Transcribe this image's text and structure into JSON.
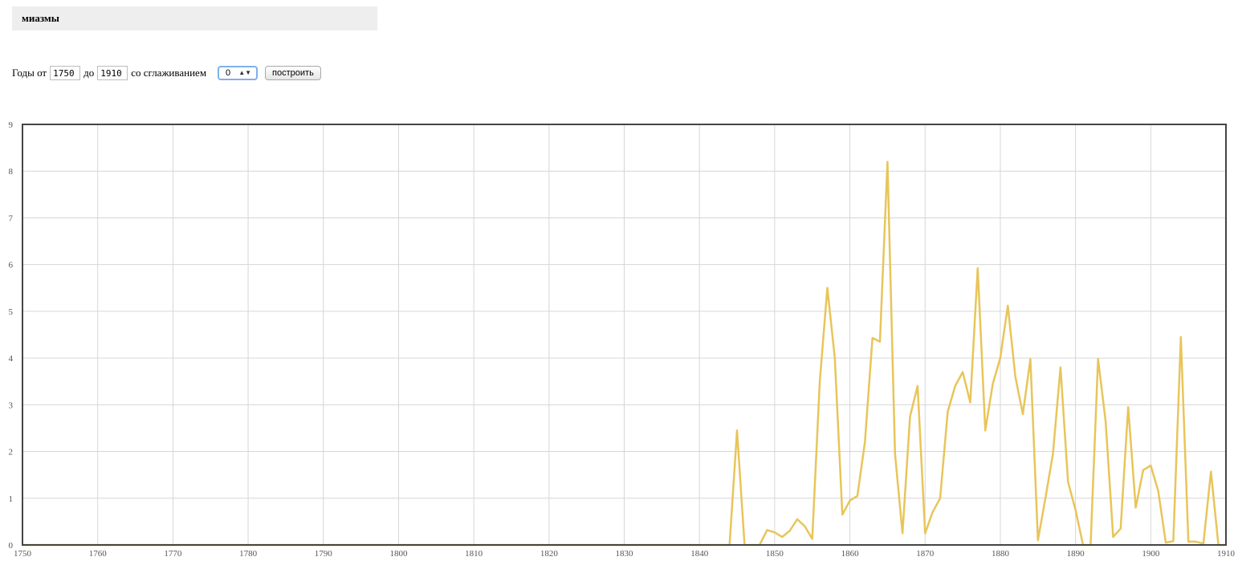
{
  "query": "миазмы",
  "controls": {
    "years_from_label": "Годы от",
    "year_from": "1750",
    "years_to_label": "до",
    "year_to": "1910",
    "smoothing_label": "со сглаживанием",
    "smoothing_value": "0",
    "build_button_label": "построить"
  },
  "colors": {
    "line": "#e8c55a",
    "grid": "#d6d6d6",
    "frame": "#444444"
  },
  "chart_data": {
    "type": "line",
    "xlim": [
      1750,
      1910
    ],
    "ylim": [
      0,
      9
    ],
    "grid": true,
    "x_ticks": [
      1750,
      1760,
      1770,
      1780,
      1790,
      1800,
      1810,
      1820,
      1830,
      1840,
      1850,
      1860,
      1870,
      1880,
      1890,
      1900,
      1910
    ],
    "y_ticks": [
      0,
      1,
      2,
      3,
      4,
      5,
      6,
      7,
      8,
      9
    ],
    "x_tick_labels": [
      "1750",
      "1760",
      "1770",
      "1780",
      "1790",
      "1800",
      "1810",
      "1820",
      "1830",
      "1840",
      "1850",
      "1860",
      "1870",
      "1880",
      "1890",
      "1900",
      "1910"
    ],
    "y_tick_labels": [
      "0",
      "1",
      "2",
      "3",
      "4",
      "5",
      "6",
      "7",
      "8",
      "9"
    ],
    "series": [
      {
        "x": [
          1750,
          1844,
          1845,
          1846,
          1847,
          1848,
          1849,
          1850,
          1851,
          1852,
          1853,
          1854,
          1855,
          1856,
          1857,
          1858,
          1859,
          1860,
          1861,
          1862,
          1863,
          1864,
          1865,
          1866,
          1867,
          1868,
          1869,
          1870,
          1871,
          1872,
          1873,
          1874,
          1875,
          1876,
          1877,
          1878,
          1879,
          1880,
          1881,
          1882,
          1883,
          1884,
          1885,
          1886,
          1887,
          1888,
          1889,
          1890,
          1891,
          1892,
          1893,
          1894,
          1895,
          1896,
          1897,
          1898,
          1899,
          1900,
          1901,
          1902,
          1903,
          1904,
          1905,
          1906,
          1907,
          1908,
          1909,
          1910
        ],
        "y": [
          0,
          0,
          2.45,
          0,
          0,
          0,
          0.32,
          0.27,
          0.17,
          0.3,
          0.55,
          0.4,
          0.13,
          3.5,
          5.5,
          4.0,
          0.65,
          0.95,
          1.05,
          2.2,
          4.43,
          4.35,
          8.2,
          1.95,
          0.25,
          2.75,
          3.4,
          0.25,
          0.7,
          1.0,
          2.85,
          3.4,
          3.7,
          3.05,
          5.92,
          2.45,
          3.45,
          4.0,
          5.12,
          3.6,
          2.8,
          3.98,
          0.1,
          1.0,
          1.95,
          3.8,
          1.35,
          0.75,
          0,
          0,
          3.98,
          2.65,
          0.17,
          0.35,
          2.95,
          0.8,
          1.6,
          1.7,
          1.15,
          0.05,
          0.08,
          4.45,
          0.07,
          0.07,
          0.03,
          1.57,
          0,
          0
        ]
      }
    ]
  }
}
